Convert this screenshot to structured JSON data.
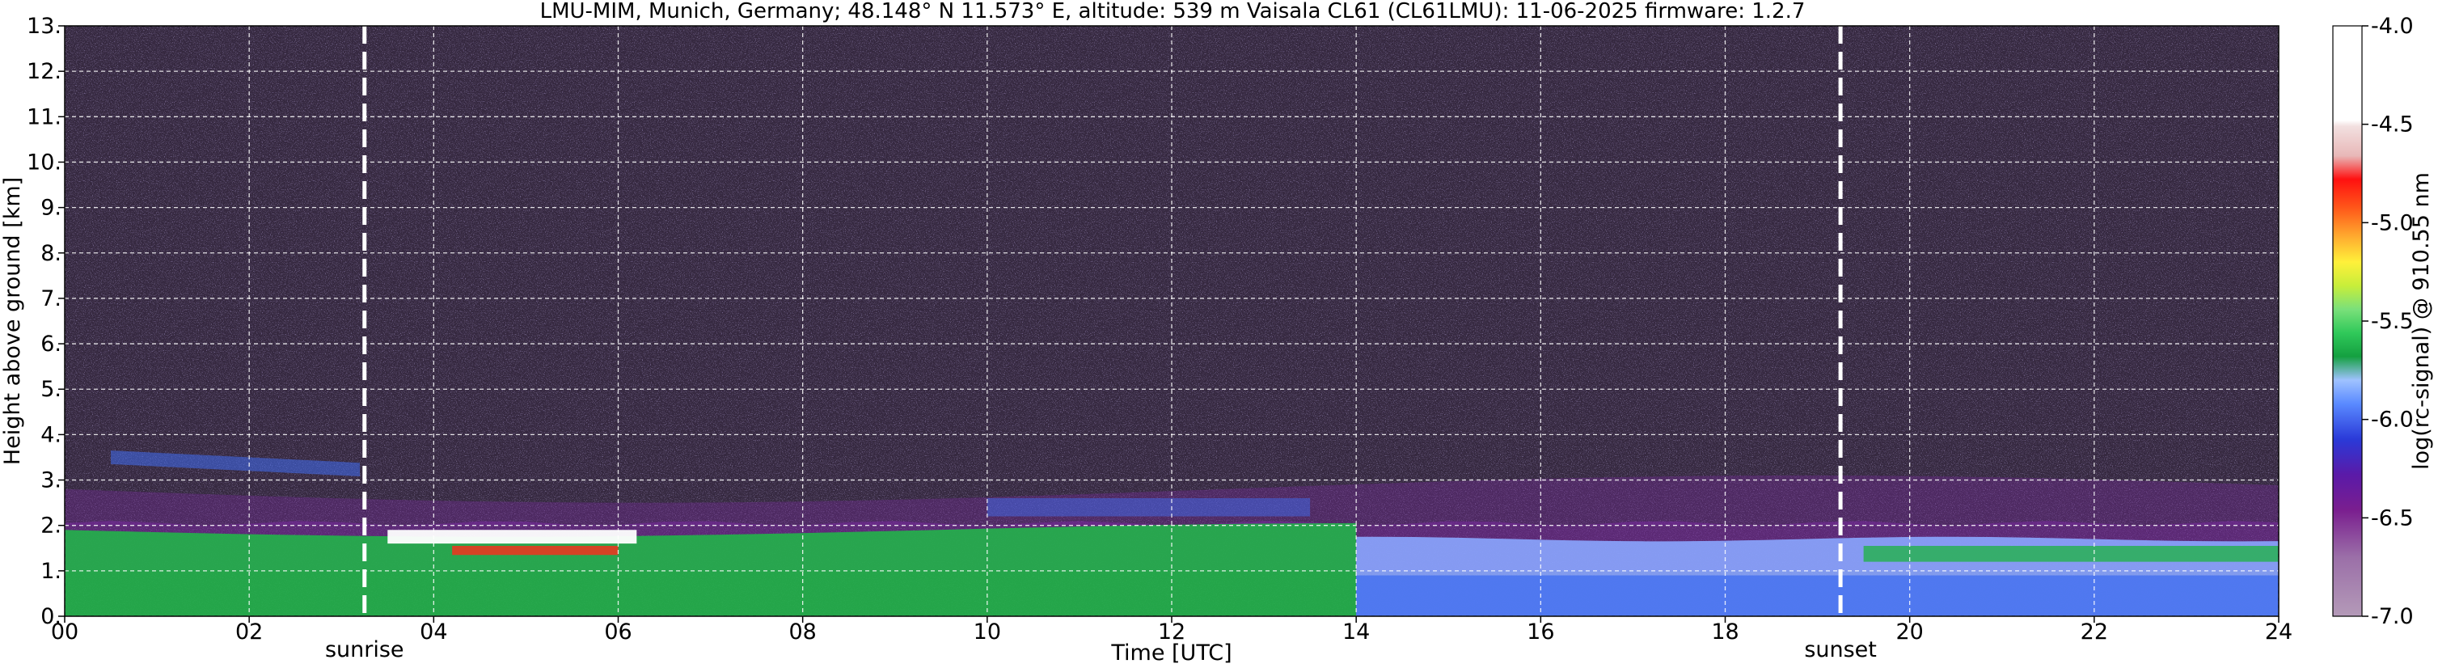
{
  "title": "LMU-MIM, Munich, Germany; 48.148° N 11.573° E, altitude: 539 m    Vaisala CL61 (CL61LMU): 11-06-2025    firmware: 1.2.7",
  "chart_data": {
    "type": "heatmap",
    "xlabel": "Time [UTC]",
    "ylabel": "Height above ground [km]",
    "colorbar_label": "log(rc-signal) @ 910.55 nm",
    "xlim": [
      0,
      24
    ],
    "ylim": [
      0,
      13
    ],
    "x_ticks": [
      "00",
      "02",
      "04",
      "06",
      "08",
      "10",
      "12",
      "14",
      "16",
      "18",
      "20",
      "22",
      "24"
    ],
    "x_tick_values": [
      0,
      2,
      4,
      6,
      8,
      10,
      12,
      14,
      16,
      18,
      20,
      22,
      24
    ],
    "y_ticks": [
      "0.",
      "1.",
      "2.",
      "3.",
      "4.",
      "5.",
      "6.",
      "7.",
      "8.",
      "9.",
      "10.",
      "11.",
      "12.",
      "13."
    ],
    "y_tick_values": [
      0,
      1,
      2,
      3,
      4,
      5,
      6,
      7,
      8,
      9,
      10,
      11,
      12,
      13
    ],
    "colorbar_range": [
      -7.0,
      -4.0
    ],
    "colorbar_ticks": [
      "-4.0",
      "-4.5",
      "-5.0",
      "-5.5",
      "-6.0",
      "-6.5",
      "-7.0"
    ],
    "colorbar_tick_values": [
      -4.0,
      -4.5,
      -5.0,
      -5.5,
      -6.0,
      -6.5,
      -7.0
    ],
    "grid": true,
    "annotations": [
      {
        "label": "sunrise",
        "x": 3.25
      },
      {
        "label": "sunset",
        "x": 19.25
      }
    ],
    "colors": {
      "background_noise": "#3a2a4a",
      "noise_speckle": "#8a6cc8",
      "boundary_layer_green": "#22b24a",
      "aerosol_light_blue": "#8aa6ff",
      "aerosol_blue": "#3f6cf0",
      "residual_purple": "#7a2aa0",
      "cloud_red": "#ff2a1a",
      "cloud_white": "#ffffff",
      "marker_line": "#ffffff"
    }
  }
}
